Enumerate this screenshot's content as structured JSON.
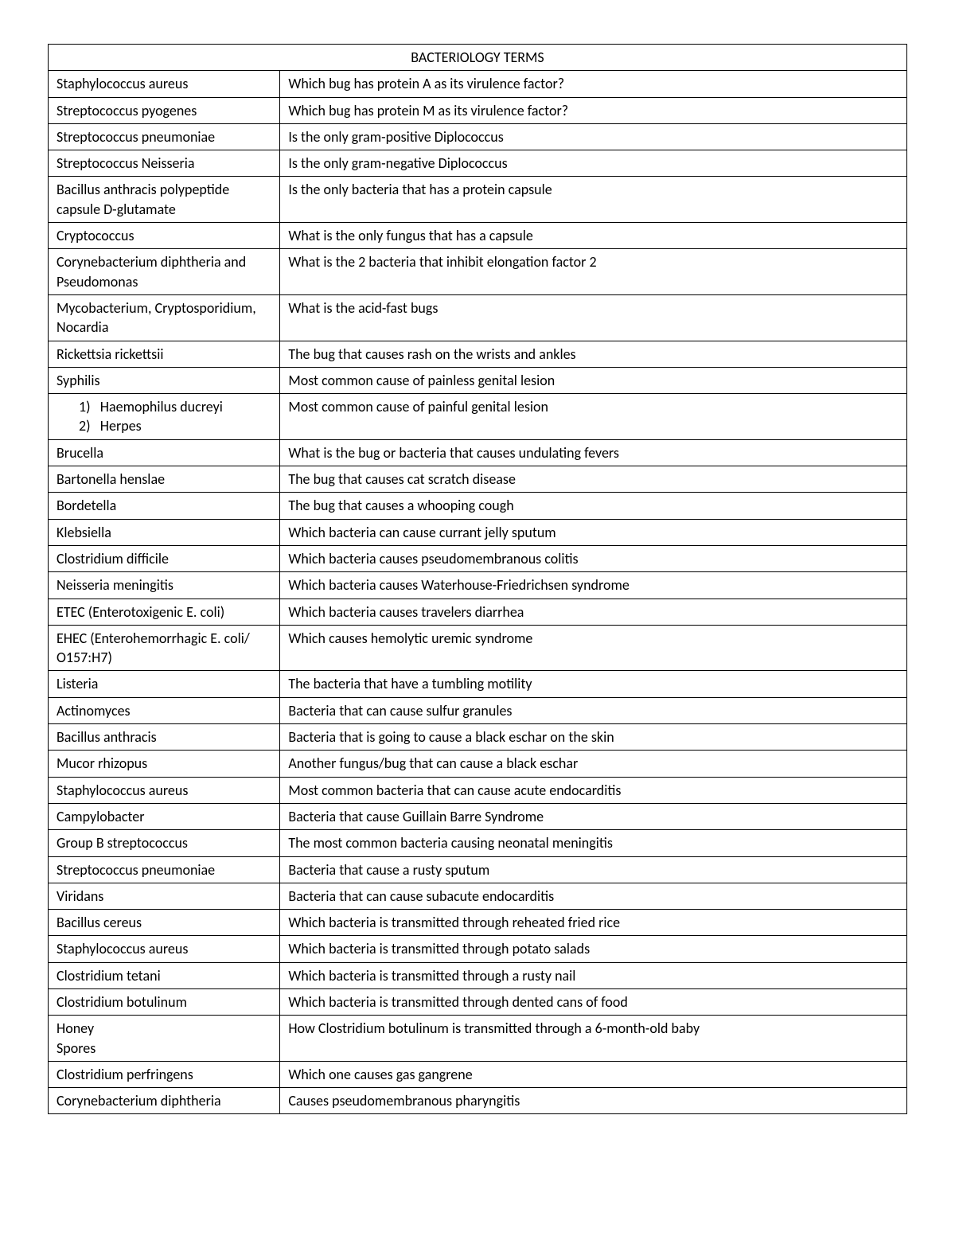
{
  "title": "BACTERIOLOGY TERMS",
  "listNums": {
    "n1": "1)",
    "n2": "2)"
  },
  "rows": [
    {
      "left": "Staphylococcus aureus",
      "right": "Which bug has protein A as its virulence factor?"
    },
    {
      "left": "Streptococcus pyogenes",
      "right": "Which bug has protein M as its virulence factor?"
    },
    {
      "left": "Streptococcus pneumoniae",
      "right": "Is the only gram-positive Diplococcus"
    },
    {
      "left": "Streptococcus Neisseria",
      "right": "Is the only gram-negative Diplococcus"
    },
    {
      "left": "Bacillus anthracis polypeptide capsule D-glutamate",
      "right": "Is the only bacteria that has a protein capsule"
    },
    {
      "left": "Cryptococcus",
      "right": "What is the only fungus that has a capsule"
    },
    {
      "left": "Corynebacterium diphtheria and Pseudomonas",
      "right": "What is the 2 bacteria that inhibit elongation factor 2"
    },
    {
      "left": "Mycobacterium, Cryptosporidium, Nocardia",
      "right": "What is the acid-fast bugs"
    },
    {
      "left": "Rickettsia rickettsii",
      "right": "The bug that causes rash on the wrists and ankles"
    },
    {
      "left": "Syphilis",
      "right": "Most common cause of painless genital lesion"
    },
    {
      "left_list": [
        "Haemophilus ducreyi",
        "Herpes"
      ],
      "right": "Most common cause of painful genital lesion"
    },
    {
      "left": "Brucella",
      "right": "What is the bug or bacteria that causes undulating fevers"
    },
    {
      "left": "Bartonella henslae",
      "right": "The bug that causes cat scratch disease"
    },
    {
      "left": "Bordetella",
      "right": "The bug that causes a whooping cough"
    },
    {
      "left": "Klebsiella",
      "right": "Which bacteria can cause currant jelly sputum"
    },
    {
      "left": "Clostridium difficile",
      "right": "Which bacteria causes pseudomembranous colitis"
    },
    {
      "left": "Neisseria meningitis",
      "right": "Which bacteria causes Waterhouse-Friedrichsen syndrome"
    },
    {
      "left": "ETEC (Enterotoxigenic E. coli)",
      "right": "Which bacteria causes travelers diarrhea"
    },
    {
      "left": "EHEC (Enterohemorrhagic E. coli/ O157:H7)",
      "right": "Which causes hemolytic uremic syndrome"
    },
    {
      "left": "Listeria",
      "right": "The bacteria that have a tumbling motility"
    },
    {
      "left": "Actinomyces",
      "right": "Bacteria that can cause sulfur granules"
    },
    {
      "left": "Bacillus anthracis",
      "right": "Bacteria that is going to cause a black eschar on the skin"
    },
    {
      "left": "Mucor rhizopus",
      "right": "Another fungus/bug that can cause a black eschar"
    },
    {
      "left": "Staphylococcus aureus",
      "right": "Most common bacteria that can cause acute endocarditis"
    },
    {
      "left": "Campylobacter",
      "right": "Bacteria that cause Guillain Barre Syndrome"
    },
    {
      "left": "Group B streptococcus",
      "right": "The most common bacteria causing neonatal meningitis"
    },
    {
      "left": "Streptococcus pneumoniae",
      "right": "Bacteria that cause a rusty sputum"
    },
    {
      "left": "Viridans",
      "right": "Bacteria that can cause subacute endocarditis"
    },
    {
      "left": "Bacillus cereus",
      "right": "Which bacteria is transmitted through reheated fried rice"
    },
    {
      "left": "Staphylococcus aureus",
      "right": "Which bacteria is transmitted through potato salads"
    },
    {
      "left": "Clostridium tetani",
      "right": "Which bacteria is transmitted through a rusty nail"
    },
    {
      "left": "Clostridium botulinum",
      "right": "Which bacteria is transmitted through dented cans of food"
    },
    {
      "left_multiline": [
        "Honey",
        "Spores"
      ],
      "right": "How Clostridium botulinum is transmitted through a 6-month-old baby"
    },
    {
      "left": "Clostridium perfringens",
      "right": "Which one causes gas gangrene"
    },
    {
      "left": "Corynebacterium diphtheria",
      "right": "Causes pseudomembranous pharyngitis"
    }
  ]
}
